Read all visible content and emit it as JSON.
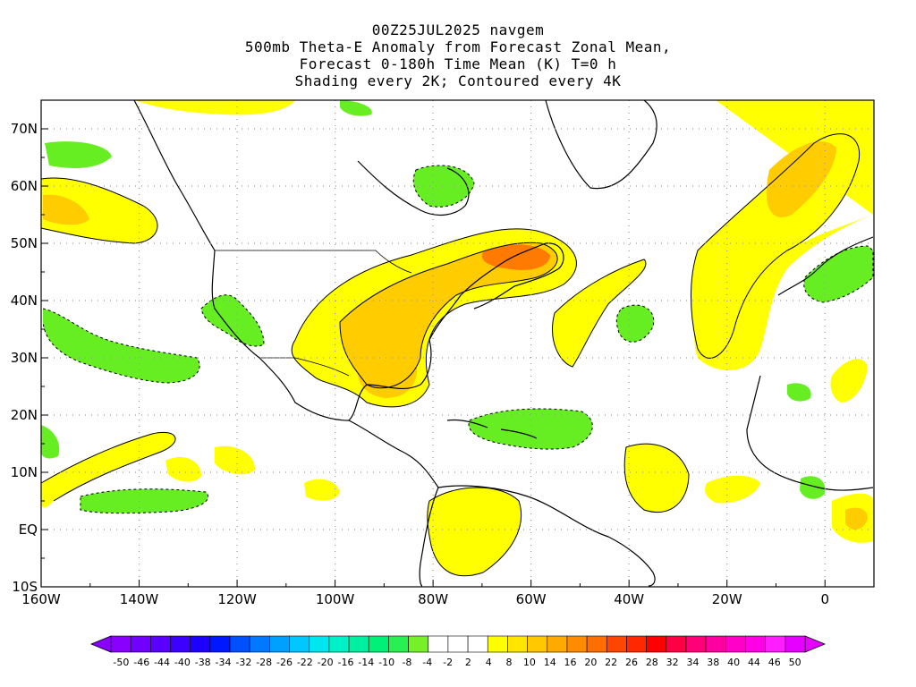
{
  "title": {
    "line1": "00Z25JUL2025 navgem",
    "line2": "500mb Theta-E Anomaly from Forecast Zonal Mean,",
    "line3": "Forecast 0-180h Time Mean (K) T=0 h",
    "line4": "Shading every 2K; Contoured every 4K"
  },
  "map": {
    "lon_range": [
      -160,
      10
    ],
    "lat_range": [
      -10,
      75
    ],
    "lon_ticks": [
      "160W",
      "140W",
      "120W",
      "100W",
      "80W",
      "60W",
      "40W",
      "20W",
      "0"
    ],
    "lat_ticks": [
      "10S",
      "EQ",
      "10N",
      "20N",
      "30N",
      "40N",
      "50N",
      "60N",
      "70N"
    ]
  },
  "colorbar": {
    "labels": [
      "-50",
      "-46",
      "-44",
      "-40",
      "-38",
      "-34",
      "-32",
      "-28",
      "-26",
      "-22",
      "-20",
      "-16",
      "-14",
      "-10",
      "-8",
      "-4",
      "-2",
      "2",
      "4",
      "8",
      "10",
      "14",
      "16",
      "20",
      "22",
      "26",
      "28",
      "32",
      "34",
      "38",
      "40",
      "44",
      "46",
      "50"
    ],
    "colors": [
      "#8a00ff",
      "#7000ff",
      "#5a00ff",
      "#3c00ff",
      "#1e00ff",
      "#0018ff",
      "#0050ff",
      "#0078ff",
      "#00a0ff",
      "#00c8ff",
      "#00e6f0",
      "#00f0c8",
      "#00f0a0",
      "#00f078",
      "#28f050",
      "#78f028",
      "#ffffff",
      "#ffffff",
      "#ffffff",
      "#ffff00",
      "#ffe600",
      "#ffc800",
      "#ffaa00",
      "#ff8c00",
      "#ff6e00",
      "#ff4600",
      "#ff2800",
      "#ff0000",
      "#ff0046",
      "#ff0078",
      "#ff00a0",
      "#ff00c8",
      "#ff00e6",
      "#ff1eff",
      "#e600ff"
    ],
    "left_arrow_color": "#8a00ff",
    "right_arrow_color": "#e600ff"
  },
  "shading": {
    "positive_weak": "#ffff00",
    "positive_mid": "#ffcc00",
    "positive_strong": "#ffaa00",
    "positive_max": "#ff7a00",
    "negative_weak": "#66ee22"
  }
}
